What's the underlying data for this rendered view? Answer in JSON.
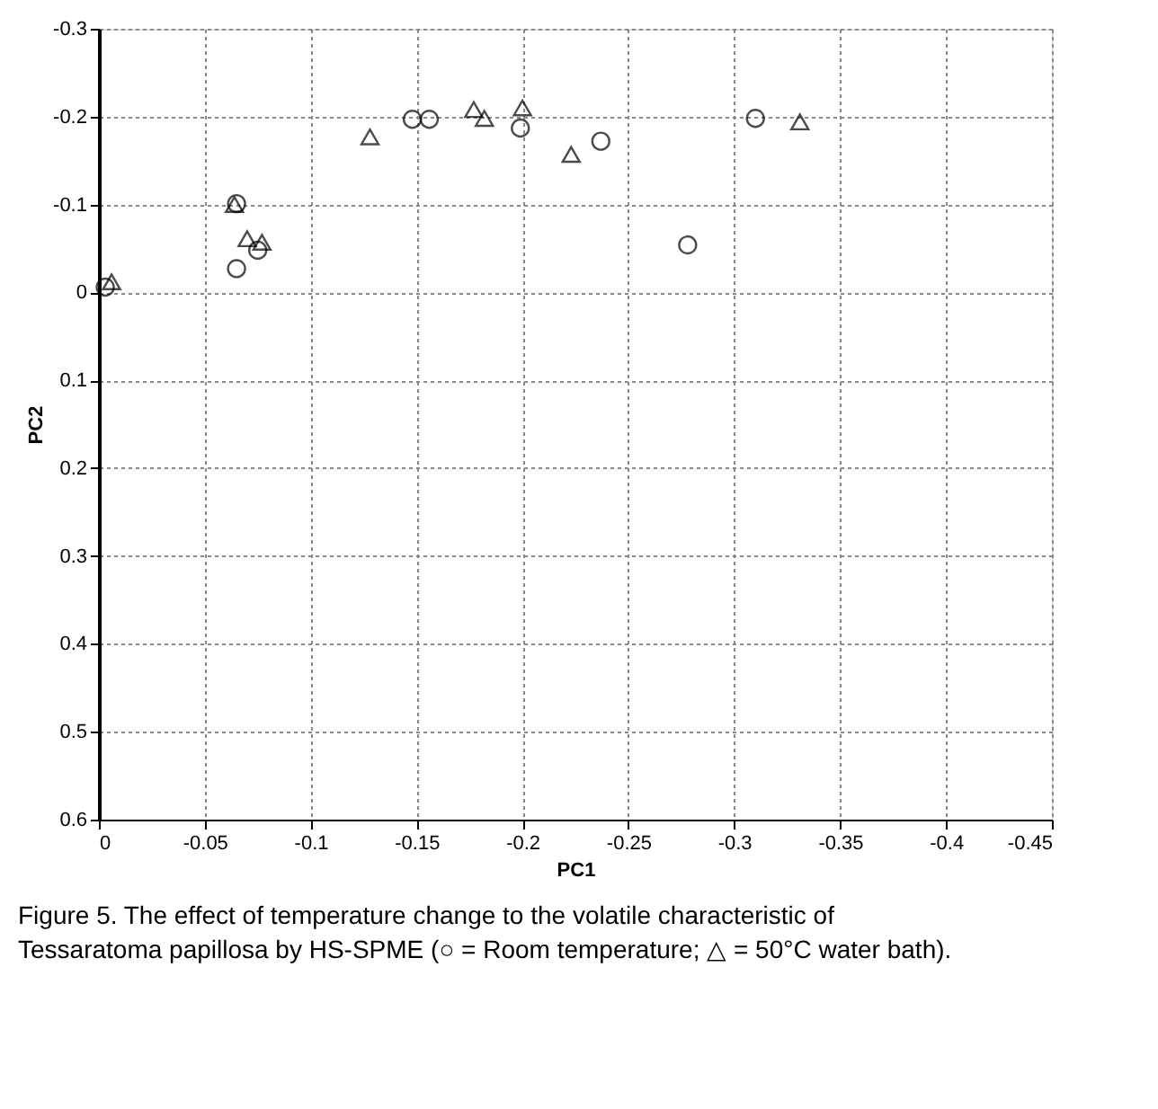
{
  "chart_data": {
    "type": "scatter",
    "xlabel": "PC1",
    "ylabel": "PC2",
    "xlim": [
      0,
      -0.45
    ],
    "xticks": [
      0,
      -0.05,
      -0.1,
      -0.15,
      -0.2,
      -0.25,
      -0.3,
      -0.35,
      -0.4,
      -0.45
    ],
    "ylim": [
      0.6,
      -0.3
    ],
    "yticks": [
      -0.3,
      -0.2,
      -0.1,
      0,
      0.1,
      0.2,
      0.3,
      0.4,
      0.5,
      0.6
    ],
    "grid": true,
    "series": [
      {
        "color": "#000000",
        "marker": "circle",
        "x": [
          -0.003,
          -0.065,
          -0.065,
          -0.075,
          -0.148,
          -0.156,
          -0.199,
          -0.237,
          -0.278,
          -0.31
        ],
        "values": [
          -0.006,
          -0.101,
          -0.027,
          -0.048,
          -0.197,
          -0.197,
          -0.187,
          -0.172,
          -0.054,
          -0.198
        ]
      },
      {
        "color": "#000000",
        "marker": "triangle",
        "x": [
          -0.006,
          -0.064,
          -0.07,
          -0.077,
          -0.128,
          -0.177,
          -0.182,
          -0.2,
          -0.223,
          -0.331
        ],
        "values": [
          -0.012,
          -0.1,
          -0.061,
          -0.057,
          -0.177,
          -0.208,
          -0.198,
          -0.21,
          -0.157,
          -0.194
        ]
      }
    ],
    "annotations": [
      "Figure 5. The effect of temperature change to the volatile characteristic of Tessaratoma papillosa by HS-SPME (○ = Room temperature; △ = 50°C water bath)."
    ]
  }
}
